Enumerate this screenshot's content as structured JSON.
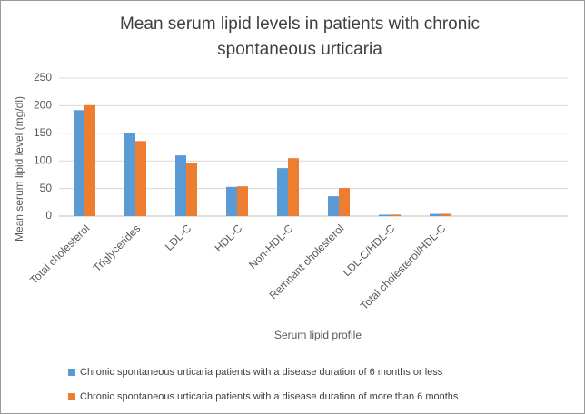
{
  "chart_data": {
    "type": "bar",
    "title": [
      "Mean serum lipid levels in patients with chronic",
      "spontaneous urticaria"
    ],
    "x_label": "Serum lipid profile",
    "y_label": "Mean serum lipid level (mg/dl)",
    "categories": [
      "Total cholesterol",
      "Triglycerides",
      "LDL-C",
      "HDL-C",
      "Non-HDL-C",
      "Remnant cholesterol",
      "LDL-C/HDL-C",
      "Total cholesterol/HDL-C",
      null,
      null
    ],
    "series": [
      {
        "name": "Chronic spontaneous urticaria patients with a disease duration of 6 months or less",
        "color": "#5b9bd5",
        "values": [
          192,
          151,
          110,
          53,
          87,
          36,
          2.5,
          4,
          null,
          null
        ]
      },
      {
        "name": "Chronic spontaneous urticaria patients with a disease duration of more than 6 months",
        "color": "#ed7d31",
        "values": [
          201,
          136,
          97,
          54,
          105,
          51,
          2.8,
          4.2,
          null,
          null
        ]
      }
    ],
    "ylim": [
      0,
      250
    ],
    "yticks": [
      0,
      50,
      100,
      150,
      200,
      250
    ],
    "grid": true,
    "legend": "bottom"
  }
}
